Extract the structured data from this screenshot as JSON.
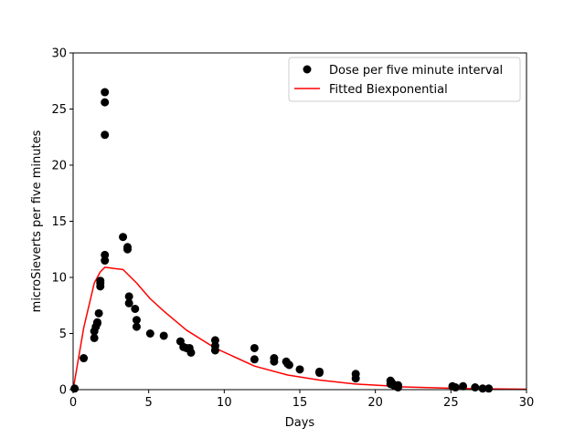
{
  "chart_data": {
    "type": "scatter",
    "title": "",
    "xlabel": "Days",
    "ylabel": "microSieverts per five minutes",
    "xlim": [
      0,
      30
    ],
    "ylim": [
      0,
      30
    ],
    "xticks": [
      0,
      5,
      10,
      15,
      20,
      25,
      30
    ],
    "yticks": [
      0,
      5,
      10,
      15,
      20,
      25,
      30
    ],
    "grid": false,
    "legend_position": "top-right",
    "series": [
      {
        "name": "Dose per five minute interval",
        "type": "scatter",
        "color": "#000000",
        "points": [
          [
            0.1,
            0.1
          ],
          [
            0.7,
            2.8
          ],
          [
            1.4,
            4.6
          ],
          [
            1.4,
            5.2
          ],
          [
            1.5,
            5.6
          ],
          [
            1.6,
            5.9
          ],
          [
            1.6,
            6.0
          ],
          [
            1.7,
            6.8
          ],
          [
            1.8,
            9.2
          ],
          [
            1.8,
            9.5
          ],
          [
            1.8,
            9.7
          ],
          [
            2.1,
            11.5
          ],
          [
            2.1,
            12.0
          ],
          [
            2.1,
            22.7
          ],
          [
            2.1,
            25.6
          ],
          [
            2.1,
            26.5
          ],
          [
            3.3,
            13.6
          ],
          [
            3.6,
            12.5
          ],
          [
            3.6,
            12.7
          ],
          [
            3.7,
            7.7
          ],
          [
            3.7,
            8.3
          ],
          [
            4.1,
            7.2
          ],
          [
            4.2,
            5.6
          ],
          [
            4.2,
            6.2
          ],
          [
            5.1,
            5.0
          ],
          [
            6.0,
            4.8
          ],
          [
            7.1,
            4.3
          ],
          [
            7.3,
            3.8
          ],
          [
            7.5,
            3.7
          ],
          [
            7.7,
            3.7
          ],
          [
            7.8,
            3.3
          ],
          [
            9.4,
            3.5
          ],
          [
            9.4,
            3.9
          ],
          [
            9.4,
            4.4
          ],
          [
            12.0,
            2.7
          ],
          [
            12.0,
            3.7
          ],
          [
            13.3,
            2.5
          ],
          [
            13.3,
            2.8
          ],
          [
            14.1,
            2.5
          ],
          [
            14.2,
            2.3
          ],
          [
            14.3,
            2.2
          ],
          [
            15.0,
            1.8
          ],
          [
            16.3,
            1.5
          ],
          [
            16.3,
            1.6
          ],
          [
            18.7,
            1.0
          ],
          [
            18.7,
            1.4
          ],
          [
            21.0,
            0.5
          ],
          [
            21.0,
            0.8
          ],
          [
            21.1,
            0.6
          ],
          [
            21.2,
            0.4
          ],
          [
            21.5,
            0.2
          ],
          [
            21.5,
            0.4
          ],
          [
            25.1,
            0.3
          ],
          [
            25.3,
            0.2
          ],
          [
            25.8,
            0.3
          ],
          [
            26.6,
            0.2
          ],
          [
            27.1,
            0.1
          ],
          [
            27.5,
            0.1
          ]
        ]
      },
      {
        "name": "Fitted Biexponential",
        "type": "line",
        "color": "#ff0000",
        "points": [
          [
            0,
            0
          ],
          [
            0.7,
            5.5
          ],
          [
            1.4,
            9.5
          ],
          [
            1.8,
            10.5
          ],
          [
            2.1,
            10.9
          ],
          [
            3.3,
            10.7
          ],
          [
            4.2,
            9.5
          ],
          [
            5.1,
            8.1
          ],
          [
            6.0,
            7.0
          ],
          [
            7.5,
            5.3
          ],
          [
            9.4,
            3.7
          ],
          [
            12.0,
            2.1
          ],
          [
            14.2,
            1.3
          ],
          [
            16.3,
            0.85
          ],
          [
            18.7,
            0.5
          ],
          [
            21.0,
            0.33
          ],
          [
            21.5,
            0.25
          ],
          [
            25.1,
            0.12
          ],
          [
            27.5,
            0.07
          ],
          [
            30,
            0.04
          ]
        ]
      }
    ]
  }
}
